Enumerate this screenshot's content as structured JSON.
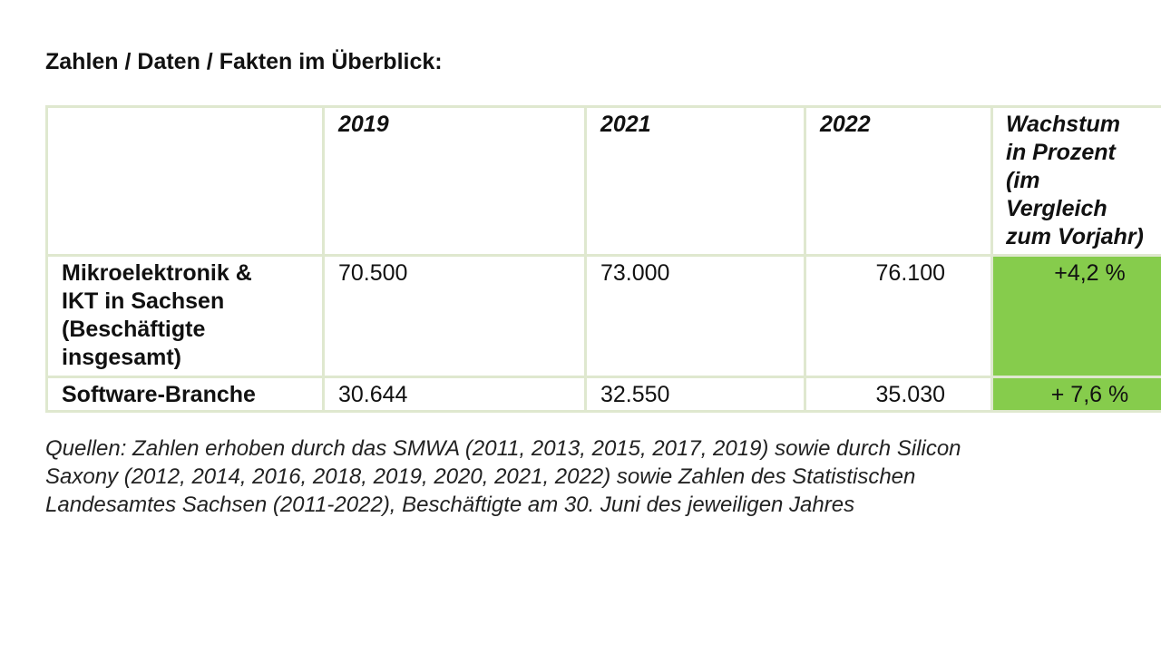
{
  "heading": "Zahlen / Daten / Fakten im Überblick:",
  "table": {
    "header": {
      "label": "",
      "years": [
        "2019",
        "2021",
        "2022"
      ],
      "growth_lines": [
        "Wachstum",
        "in Prozent",
        "(im",
        "Vergleich",
        "zum Vorjahr)"
      ]
    },
    "rows": [
      {
        "label_lines": [
          "Mikroelektronik &",
          "IKT in Sachsen",
          "(Beschäftigte",
          "insgesamt)"
        ],
        "v2019": "70.500",
        "v2021": "73.000",
        "v2022": "76.100",
        "growth": "+4,2 %"
      },
      {
        "label_lines": [
          "Software-Branche"
        ],
        "v2019": "30.644",
        "v2021": "32.550",
        "v2022": "35.030",
        "growth": "+ 7,6 %"
      }
    ],
    "colors": {
      "border": "#dfe8cf",
      "growth_highlight": "#86cc4c"
    }
  },
  "sources_lines": [
    "Quellen: Zahlen erhoben durch das SMWA (2011, 2013, 2015, 2017, 2019) sowie durch Silicon",
    "Saxony (2012, 2014, 2016, 2018, 2019, 2020, 2021, 2022) sowie Zahlen des Statistischen",
    "Landesamtes Sachsen (2011-2022), Beschäftigte am 30. Juni des jeweiligen Jahres"
  ]
}
